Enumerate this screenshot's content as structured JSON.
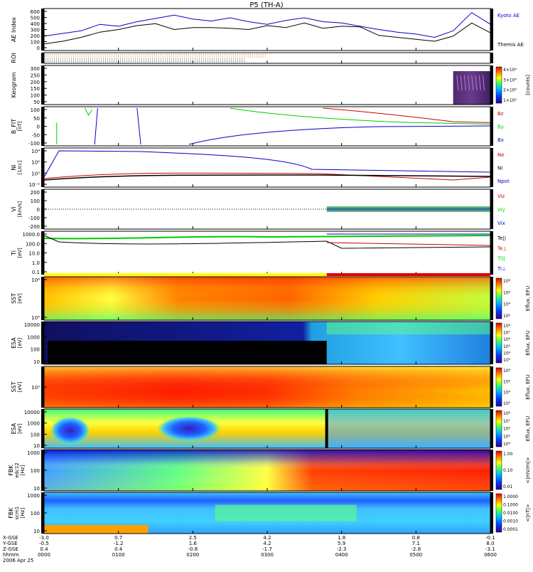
{
  "title": "P5 (TH-A)",
  "footer": {
    "row_labels": [
      "X-GSE",
      "Y-GSE",
      "Z-GSE",
      "hhmm",
      "2006 Apr 25"
    ],
    "columns": [
      [
        "-3.0",
        "-0.5",
        "0.4",
        "0000"
      ],
      [
        "0.7",
        "-1.2",
        "0.4",
        "0100"
      ],
      [
        "2.5",
        "1.6",
        "-0.8",
        "0200"
      ],
      [
        "4.2",
        "4.2",
        "-1.7",
        "0300"
      ],
      [
        "1.8",
        "5.9",
        "-2.3",
        "0400"
      ],
      [
        "0.8",
        "7.1",
        "-2.8",
        "0500"
      ],
      [
        "-0.1",
        "8.0",
        "-3.1",
        "0600"
      ]
    ]
  },
  "chart_data": [
    {
      "type": "line",
      "panel": "AE",
      "ylabel": "AE Index",
      "yticks": [
        "600",
        "500",
        "400",
        "300",
        "200",
        "100",
        "0"
      ],
      "ylim": [
        0,
        600
      ],
      "x_hours": [
        0,
        0.25,
        0.5,
        0.75,
        1.0,
        1.25,
        1.5,
        1.75,
        2.0,
        2.25,
        2.5,
        2.75,
        3.0,
        3.25,
        3.5,
        3.75,
        4.0,
        4.25,
        4.5,
        4.75,
        5.0,
        5.25,
        5.5,
        5.75,
        6.0
      ],
      "series": [
        {
          "name": "Kyoto AE",
          "color": "#0000cc",
          "values": [
            200,
            240,
            280,
            380,
            350,
            420,
            470,
            520,
            460,
            430,
            480,
            420,
            380,
            440,
            480,
            420,
            400,
            350,
            300,
            260,
            230,
            180,
            280,
            560,
            380
          ]
        },
        {
          "name": "Themis AE",
          "color": "#000000",
          "values": [
            80,
            120,
            180,
            260,
            300,
            360,
            390,
            300,
            330,
            330,
            320,
            300,
            360,
            330,
            400,
            320,
            350,
            340,
            210,
            180,
            150,
            120,
            200,
            400,
            250
          ]
        }
      ]
    },
    {
      "type": "line",
      "panel": "ROI",
      "ylabel": "ROI"
    },
    {
      "type": "heatmap",
      "panel": "Keogram",
      "ylabel": "Keogram",
      "yticks": [
        "300",
        "250",
        "200",
        "150",
        "100",
        "50"
      ],
      "colorbar": [
        "4×10⁴",
        "3×10⁴",
        "2×10⁴",
        "1×10⁴"
      ],
      "colorbar_label": "[counts]"
    },
    {
      "type": "line",
      "panel": "B FIT",
      "ylabel": "B_FIT",
      "units": "[nT]",
      "yticks": [
        "100",
        "50",
        "0",
        "-50",
        "-100"
      ],
      "ylim": [
        -100,
        100
      ],
      "series": [
        {
          "name": "Bz",
          "color": "#cc0000"
        },
        {
          "name": "By",
          "color": "#00cc00"
        },
        {
          "name": "Bx",
          "color": "#0000cc"
        }
      ]
    },
    {
      "type": "line",
      "panel": "Ni",
      "ylabel": "Ni",
      "units": "[1/cc]",
      "yticks": [
        "10⁴",
        "10²",
        "10⁰",
        "10⁻²"
      ],
      "series": [
        {
          "name": "Ne",
          "color": "#cc0000"
        },
        {
          "name": "Ni",
          "color": "#000000"
        },
        {
          "name": "Npot",
          "color": "#0000cc"
        }
      ]
    },
    {
      "type": "line",
      "panel": "Vi",
      "ylabel": "Vi",
      "units": "[km/s]",
      "yticks": [
        "200",
        "100",
        "0",
        "-100",
        "-200"
      ],
      "ylim": [
        -200,
        200
      ],
      "series": [
        {
          "name": "Viz",
          "color": "#cc0000"
        },
        {
          "name": "Viy",
          "color": "#00cc00"
        },
        {
          "name": "Vix",
          "color": "#0000cc"
        }
      ]
    },
    {
      "type": "line",
      "panel": "T",
      "ylabel": "Ti",
      "units": "[eV]",
      "yticks": [
        "1000.0",
        "100.0",
        "10.0",
        "1.0",
        "0.1"
      ],
      "series": [
        {
          "name": "Te||",
          "color": "#000000"
        },
        {
          "name": "Te⊥",
          "color": "#cc0000"
        },
        {
          "name": "Ti||",
          "color": "#00cc00"
        },
        {
          "name": "Ti⊥",
          "color": "#0000cc"
        }
      ]
    },
    {
      "type": "heatmap",
      "panel": "SST ions",
      "ylabel": "SST",
      "units": "[eV]",
      "yticks": [
        "10⁶",
        "10⁵"
      ],
      "colorbar": [
        "10⁸",
        "10⁶",
        "10⁴",
        "10²"
      ],
      "colorbar_label": "Eflux, EFU"
    },
    {
      "type": "heatmap",
      "panel": "ESA ions",
      "ylabel": "ESA",
      "units": "[eV]",
      "yticks": [
        "10000",
        "1000",
        "100",
        "10"
      ],
      "colorbar": [
        "10⁸",
        "10⁷",
        "10⁶",
        "10⁵",
        "10⁴",
        "10³"
      ],
      "colorbar_label": "Eflux, EFU"
    },
    {
      "type": "heatmap",
      "panel": "SST electrons",
      "ylabel": "SST",
      "units": "[eV]",
      "yticks": [
        "10⁵"
      ],
      "colorbar": [
        "10⁸",
        "10⁶",
        "10⁴",
        "10²"
      ],
      "colorbar_label": "Eflux, EFU"
    },
    {
      "type": "heatmap",
      "panel": "ESA electrons",
      "ylabel": "ESA",
      "units": "[eV]",
      "yticks": [
        "10000",
        "1000",
        "100",
        "10"
      ],
      "colorbar": [
        "10⁸",
        "10⁷",
        "10⁶",
        "10⁵",
        "10⁴"
      ],
      "colorbar_label": "Eflux, EFU"
    },
    {
      "type": "heatmap",
      "panel": "FBK edc12",
      "ylabel": "FBK",
      "sublabel": "edc12",
      "units": "[Hz]",
      "yticks": [
        "1000",
        "100",
        "10"
      ],
      "colorbar": [
        "1.00",
        "0.10",
        "0.01"
      ],
      "colorbar_label": "<|mV/m|>"
    },
    {
      "type": "heatmap",
      "panel": "FBK scm1",
      "ylabel": "FBK",
      "sublabel": "scm1",
      "units": "[Hz]",
      "yticks": [
        "1000",
        "100",
        "10"
      ],
      "colorbar": [
        "1.0000",
        "0.1000",
        "0.0100",
        "0.0010",
        "0.0001"
      ],
      "colorbar_label": "<|nT|>"
    }
  ]
}
